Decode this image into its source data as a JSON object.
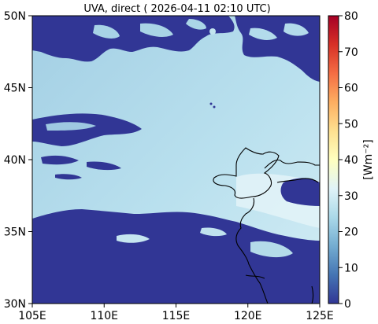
{
  "title": "UVA, direct ( 2026-04-11 02:10 UTC)",
  "map": {
    "lon_ticks": [
      "105E",
      "110E",
      "115E",
      "120E",
      "125E"
    ],
    "lat_ticks": [
      "50N",
      "45N",
      "40N",
      "35N",
      "30N"
    ],
    "lon_range": [
      105,
      125
    ],
    "lat_range": [
      30,
      50
    ],
    "field": "UVA direct irradiance",
    "cloud_color": "#313695",
    "clear_sky_color": "#abd6e8",
    "coastline_color": "#000000"
  },
  "colorbar": {
    "label": "[Wm$^{-2}$]",
    "label_display": "[Wm⁻²]",
    "ticks": [
      "0",
      "10",
      "20",
      "30",
      "40",
      "50",
      "60",
      "70",
      "80"
    ],
    "range": [
      0,
      80
    ],
    "colormap": "RdYlBu_r",
    "colors": [
      "#313695",
      "#4575b4",
      "#74add1",
      "#abd9e9",
      "#e0f3f8",
      "#ffffbf",
      "#fee090",
      "#fdae61",
      "#f46d43",
      "#d73027",
      "#a50026"
    ]
  }
}
